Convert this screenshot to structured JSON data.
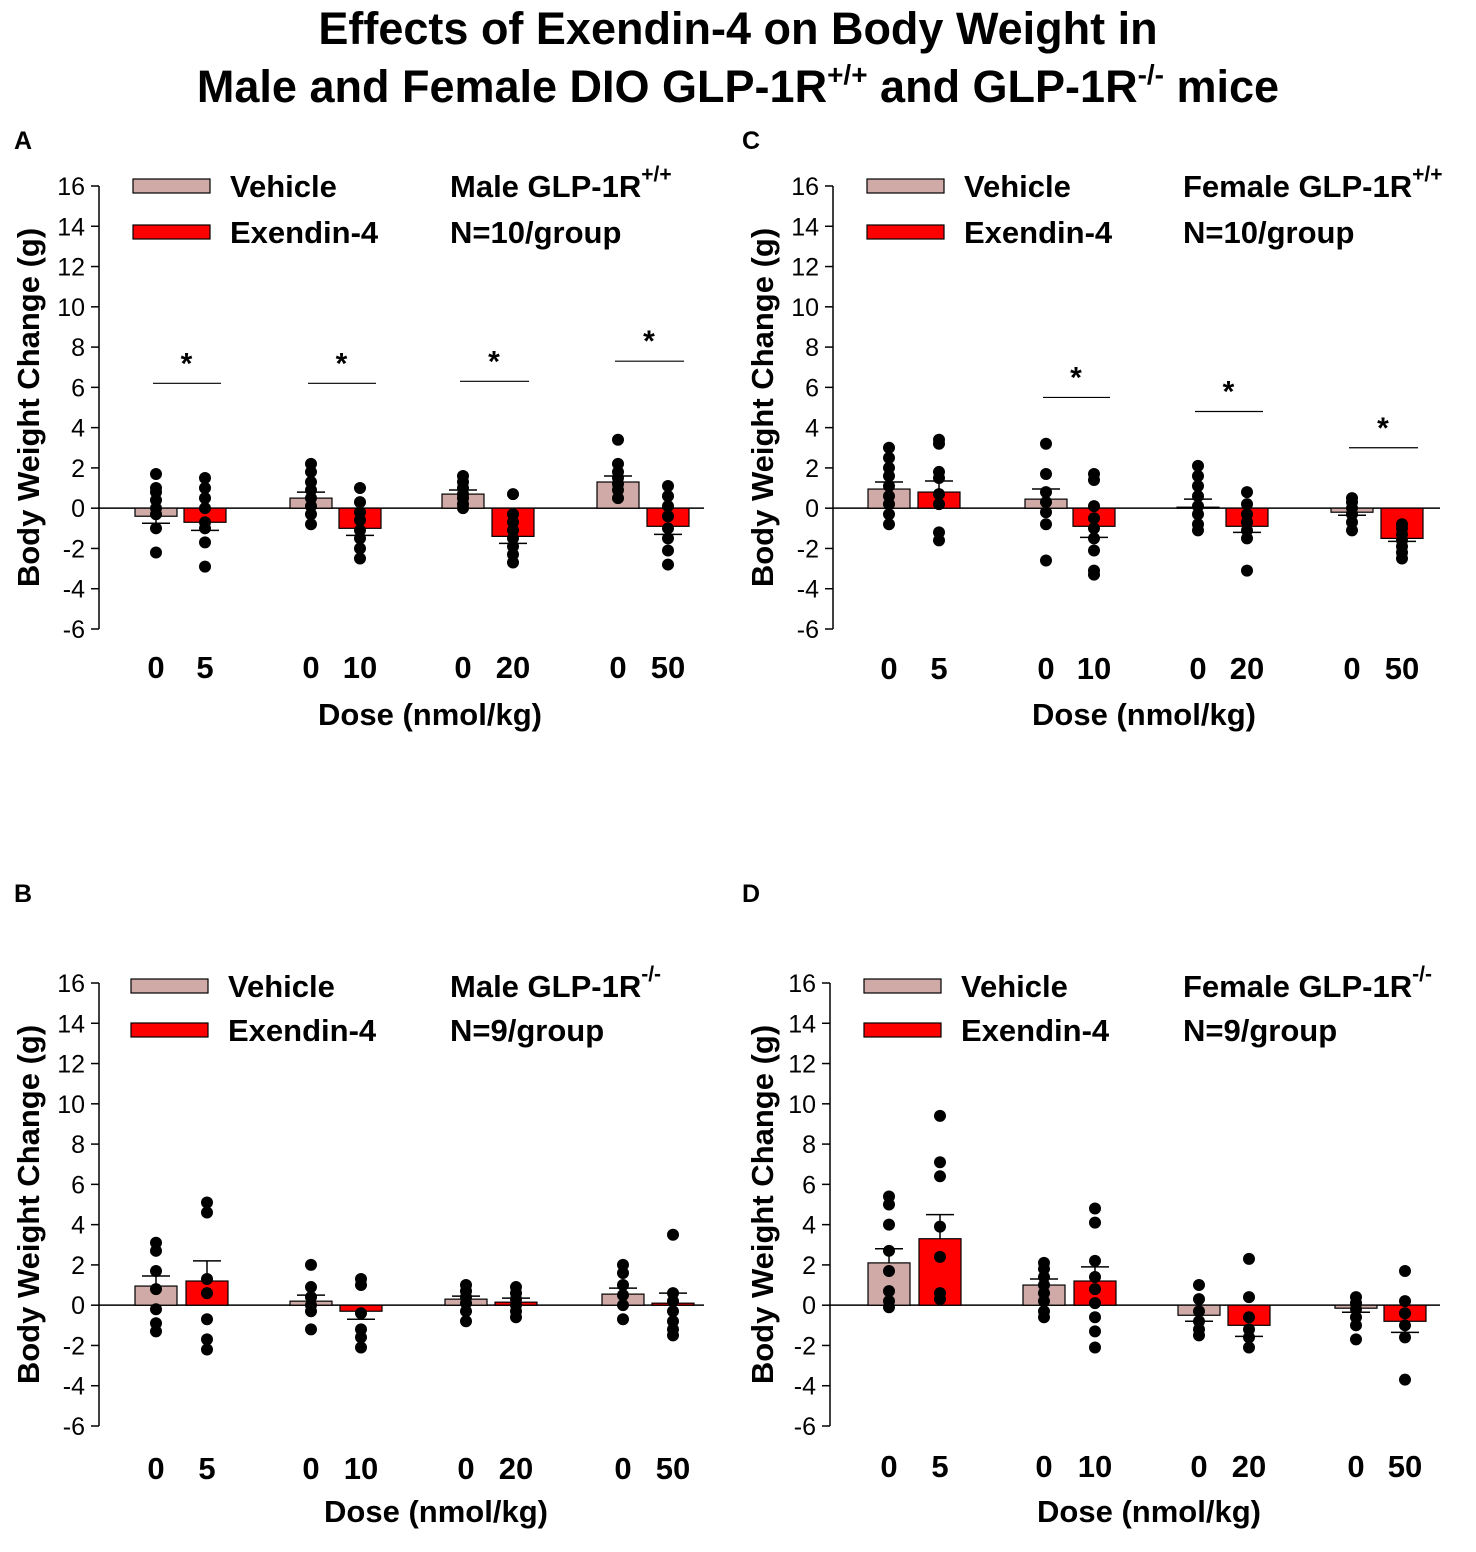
{
  "title": {
    "line1": "Effects of Exendin-4 on Body Weight in",
    "line2_a": "Male and Female DIO GLP-1R",
    "line2_sup1": "+/+",
    "line2_b": " and GLP-1R",
    "line2_sup2": "-/-",
    "line2_c": " mice"
  },
  "colors": {
    "vehicle": "#cfaaa6",
    "exendin": "#ff0000",
    "axis": "#000000",
    "dot": "#000000"
  },
  "chart_data": [
    {
      "type": "bar",
      "panel": "A",
      "legend": [
        "Vehicle",
        "Exendin-4"
      ],
      "group_label": "Male GLP-1R",
      "group_sup": "+/+",
      "n_label": "N=10/group",
      "xlabel": "Dose (nmol/kg)",
      "ylabel": "Body Weight Change (g)",
      "ylim": [
        -6,
        16
      ],
      "yticks": [
        -6,
        -4,
        -2,
        0,
        2,
        4,
        6,
        8,
        10,
        12,
        14,
        16
      ],
      "categories": [
        "0",
        "5",
        "0",
        "10",
        "0",
        "20",
        "0",
        "50"
      ],
      "series_index": [
        0,
        1,
        0,
        1,
        0,
        1,
        0,
        1
      ],
      "values": [
        -0.4,
        -0.7,
        0.5,
        -1.0,
        0.7,
        -1.4,
        1.3,
        -0.9
      ],
      "sem": [
        0.35,
        0.4,
        0.3,
        0.35,
        0.2,
        0.35,
        0.3,
        0.4
      ],
      "points": [
        [
          1.7,
          1.0,
          0.8,
          0.4,
          0.0,
          -0.3,
          -1.0,
          -2.2
        ],
        [
          1.5,
          1.0,
          0.5,
          0.0,
          -0.7,
          -1.0,
          -1.7,
          -2.9
        ],
        [
          2.2,
          1.8,
          1.3,
          0.9,
          0.5,
          0.1,
          -0.3,
          -0.8
        ],
        [
          1.0,
          0.3,
          -0.2,
          -0.6,
          -1.1,
          -1.5,
          -2.0,
          -2.5
        ],
        [
          1.6,
          1.3,
          1.0,
          0.7,
          0.5,
          0.2,
          0.0
        ],
        [
          0.7,
          -0.3,
          -0.7,
          -1.1,
          -1.5,
          -1.9,
          -2.3,
          -2.7
        ],
        [
          3.4,
          2.2,
          1.8,
          1.5,
          1.2,
          0.9,
          0.5
        ],
        [
          1.1,
          0.6,
          0.1,
          -0.4,
          -1.0,
          -1.5,
          -2.1,
          -2.8
        ]
      ],
      "significance": [
        {
          "pair": 0,
          "y": 6.2,
          "label": "*"
        },
        {
          "pair": 1,
          "y": 6.2,
          "label": "*"
        },
        {
          "pair": 2,
          "y": 6.3,
          "label": "*"
        },
        {
          "pair": 3,
          "y": 7.3,
          "label": "*"
        }
      ]
    },
    {
      "type": "bar",
      "panel": "B",
      "legend": [
        "Vehicle",
        "Exendin-4"
      ],
      "group_label": "Male GLP-1R",
      "group_sup": "-/-",
      "n_label": "N=9/group",
      "xlabel": "Dose (nmol/kg)",
      "ylabel": "Body Weight Change (g)",
      "ylim": [
        -6,
        16
      ],
      "yticks": [
        -6,
        -4,
        -2,
        0,
        2,
        4,
        6,
        8,
        10,
        12,
        14,
        16
      ],
      "categories": [
        "0",
        "5",
        "0",
        "10",
        "0",
        "20",
        "0",
        "50"
      ],
      "series_index": [
        0,
        1,
        0,
        1,
        0,
        1,
        0,
        1
      ],
      "values": [
        0.95,
        1.2,
        0.2,
        -0.3,
        0.3,
        0.15,
        0.55,
        0.1
      ],
      "sem": [
        0.5,
        1.0,
        0.3,
        0.4,
        0.15,
        0.2,
        0.3,
        0.5
      ],
      "points": [
        [
          3.1,
          2.7,
          1.7,
          0.8,
          -0.2,
          -0.9,
          -1.3
        ],
        [
          5.1,
          4.6,
          1.3,
          0.6,
          -0.7,
          -1.7,
          -2.2
        ],
        [
          2.0,
          0.9,
          0.4,
          0.0,
          -0.3,
          -1.2
        ],
        [
          1.3,
          1.0,
          -0.4,
          -1.2,
          -1.6,
          -2.1
        ],
        [
          1.0,
          0.7,
          0.4,
          0.1,
          -0.3,
          -0.8
        ],
        [
          0.9,
          0.6,
          0.3,
          0.0,
          -0.3,
          -0.6
        ],
        [
          2.0,
          1.6,
          1.0,
          0.5,
          0.0,
          -0.7
        ],
        [
          3.5,
          0.6,
          0.2,
          -0.3,
          -0.8,
          -1.2,
          -1.5
        ]
      ],
      "significance": []
    },
    {
      "type": "bar",
      "panel": "C",
      "legend": [
        "Vehicle",
        "Exendin-4"
      ],
      "group_label": "Female GLP-1R",
      "group_sup": "+/+",
      "n_label": "N=10/group",
      "xlabel": "Dose (nmol/kg)",
      "ylabel": "Body Weight Change (g)",
      "ylim": [
        -6,
        16
      ],
      "yticks": [
        -6,
        -4,
        -2,
        0,
        2,
        4,
        6,
        8,
        10,
        12,
        14,
        16
      ],
      "categories": [
        "0",
        "5",
        "0",
        "10",
        "0",
        "20",
        "0",
        "50"
      ],
      "series_index": [
        0,
        1,
        0,
        1,
        0,
        1,
        0,
        1
      ],
      "values": [
        0.95,
        0.8,
        0.45,
        -0.9,
        0.05,
        -0.9,
        -0.2,
        -1.5
      ],
      "sem": [
        0.35,
        0.55,
        0.5,
        0.55,
        0.4,
        0.3,
        0.15,
        0.15
      ],
      "points": [
        [
          3.0,
          2.5,
          2.0,
          1.6,
          1.1,
          0.6,
          0.2,
          -0.3,
          -0.8
        ],
        [
          3.4,
          3.2,
          1.8,
          1.5,
          0.7,
          0.2,
          -1.2,
          -1.6
        ],
        [
          3.2,
          1.7,
          0.8,
          0.3,
          -0.2,
          -0.8,
          -2.6
        ],
        [
          1.7,
          1.4,
          0.1,
          -0.5,
          -1.0,
          -1.5,
          -2.1,
          -3.1,
          -3.3
        ],
        [
          2.1,
          1.6,
          1.1,
          0.6,
          0.1,
          -0.3,
          -0.8,
          -1.1
        ],
        [
          0.8,
          0.2,
          -0.3,
          -0.7,
          -1.1,
          -1.5,
          -3.1
        ],
        [
          0.5,
          0.3,
          0.0,
          -0.3,
          -0.7,
          -1.1
        ],
        [
          -0.8,
          -1.0,
          -1.3,
          -1.6,
          -1.9,
          -2.2,
          -2.5
        ]
      ],
      "significance": [
        {
          "pair": 1,
          "y": 5.5,
          "label": "*"
        },
        {
          "pair": 2,
          "y": 4.8,
          "label": "*"
        },
        {
          "pair": 3,
          "y": 3.0,
          "label": "*"
        }
      ]
    },
    {
      "type": "bar",
      "panel": "D",
      "legend": [
        "Vehicle",
        "Exendin-4"
      ],
      "group_label": "Female GLP-1R",
      "group_sup": "-/-",
      "n_label": "N=9/group",
      "xlabel": "Dose (nmol/kg)",
      "ylabel": "Body Weight Change (g)",
      "ylim": [
        -6,
        16
      ],
      "yticks": [
        -6,
        -4,
        -2,
        0,
        2,
        4,
        6,
        8,
        10,
        12,
        14,
        16
      ],
      "categories": [
        "0",
        "5",
        "0",
        "10",
        "0",
        "20",
        "0",
        "50"
      ],
      "series_index": [
        0,
        1,
        0,
        1,
        0,
        1,
        0,
        1
      ],
      "values": [
        2.1,
        3.3,
        1.0,
        1.2,
        -0.5,
        -1.0,
        -0.15,
        -0.8
      ],
      "sem": [
        0.7,
        1.2,
        0.3,
        0.7,
        0.3,
        0.55,
        0.2,
        0.55
      ],
      "points": [
        [
          5.4,
          5.0,
          4.0,
          2.7,
          1.7,
          0.7,
          0.2,
          -0.1
        ],
        [
          9.4,
          7.1,
          6.4,
          3.9,
          2.4,
          0.6,
          0.3
        ],
        [
          2.1,
          1.8,
          1.4,
          1.0,
          0.6,
          0.2,
          -0.3,
          -0.6
        ],
        [
          4.8,
          4.1,
          2.2,
          1.4,
          0.8,
          0.1,
          -0.6,
          -1.3,
          -2.1
        ],
        [
          1.0,
          0.3,
          -0.3,
          -0.8,
          -1.2,
          -1.5
        ],
        [
          2.3,
          0.4,
          -0.6,
          -1.2,
          -1.6,
          -2.1
        ],
        [
          0.4,
          0.1,
          -0.2,
          -0.6,
          -1.0,
          -1.7
        ],
        [
          1.7,
          0.2,
          -0.4,
          -1.0,
          -1.6,
          -3.7
        ]
      ],
      "significance": []
    }
  ]
}
